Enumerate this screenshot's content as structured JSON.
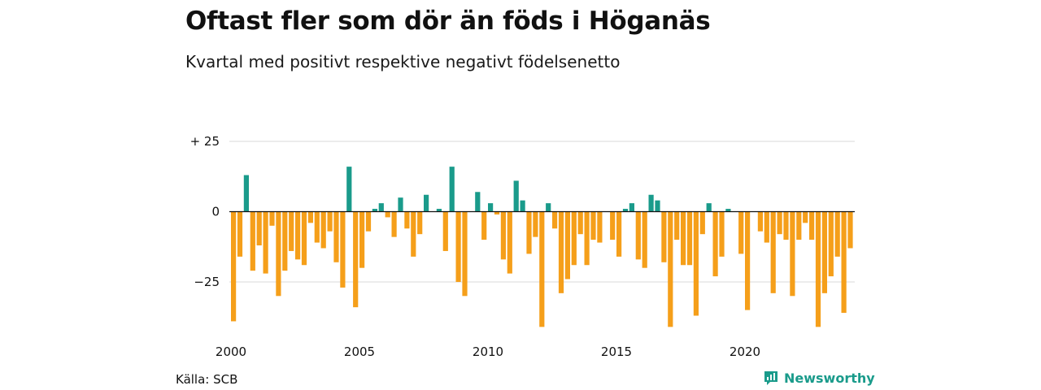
{
  "header": {
    "title": "Oftast fler som dör än föds i Höganäs",
    "subtitle": "Kvartal med positivt respektive negativt födelsenetto"
  },
  "footer": {
    "source": "Källa: SCB",
    "brand": "Newsworthy",
    "brand_icon": "newsworthy-logo-icon"
  },
  "colors": {
    "positive": "#1a9b8b",
    "negative": "#f59f1a",
    "grid": "#d9d9d9",
    "zero_line": "#111111"
  },
  "chart_data": {
    "type": "bar",
    "xlabel": "",
    "ylabel": "",
    "ylim": [
      -42,
      25
    ],
    "y_ticks": [
      {
        "value": 25,
        "label": "+ 25"
      },
      {
        "value": 0,
        "label": "0"
      },
      {
        "value": -25,
        "label": "−25"
      }
    ],
    "x_ticks": [
      "2000",
      "2005",
      "2010",
      "2015",
      "2020"
    ],
    "x_tick_values": [
      2000,
      2005,
      2010,
      2015,
      2020
    ],
    "grid": true,
    "legend": "none",
    "start_year": 2000,
    "series": [
      {
        "values": [
          -39,
          -16,
          13,
          -21,
          -12,
          -22,
          -5,
          -30,
          -21,
          -14,
          -17,
          -19,
          -4,
          -11,
          -13,
          -7,
          -18,
          -27,
          16,
          -34,
          -20,
          -7,
          1,
          3,
          -2,
          -9,
          5,
          -6,
          -16,
          -8,
          6,
          0,
          1,
          -14,
          16,
          -25,
          -30,
          0,
          7,
          -10,
          3,
          -1,
          -17,
          -22,
          11,
          4,
          -15,
          -9,
          -41,
          3,
          -6,
          -29,
          -24,
          -19,
          -8,
          -19,
          -10,
          -11,
          0,
          -10,
          -16,
          1,
          3,
          -17,
          -20,
          6,
          4,
          -18,
          -41,
          -10,
          -19,
          -19,
          -37,
          -8,
          3,
          -23,
          -16,
          1,
          0,
          -15,
          -35,
          0,
          -7,
          -11,
          -29,
          -8,
          -10,
          -30,
          -10,
          -4,
          -10,
          -41,
          -29,
          -23,
          -16,
          -36,
          -13
        ]
      }
    ]
  }
}
